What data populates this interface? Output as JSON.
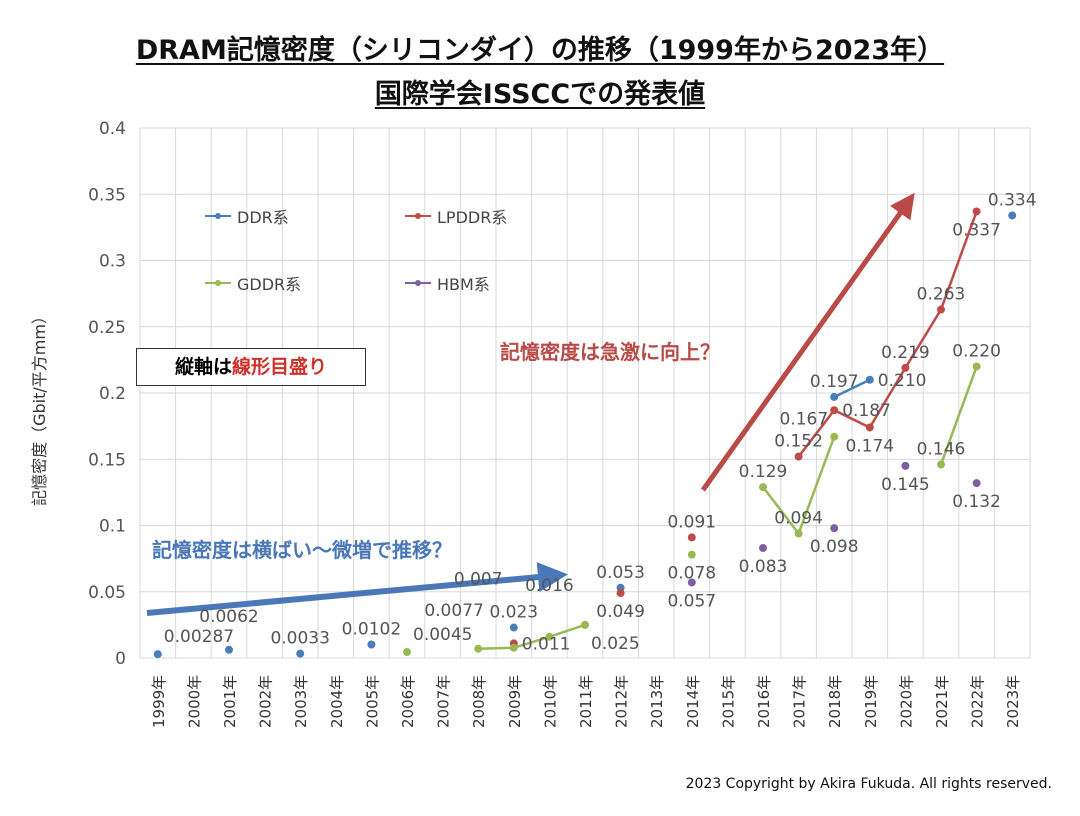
{
  "title_line1": "DRAM記憶密度（シリコンダイ）の推移（1999年から2023年）",
  "title_line2": "国際学会ISSCCでの発表値",
  "note": {
    "part1": "縦軸は",
    "part2": "線形目盛り"
  },
  "annotation_blue": "記憶密度は横ばい～微増で推移？",
  "annotation_red": "記憶密度は急激に向上？",
  "copyright": "2023 Copyright by Akira Fukuda. All rights reserved.",
  "chart_data": {
    "type": "line",
    "ylabel": "記憶密度（Gbit/平方mm）",
    "ylim": [
      0,
      0.4
    ],
    "yticks": [
      "0",
      "0.05",
      "0.1",
      "0.15",
      "0.2",
      "0.25",
      "0.3",
      "0.35",
      "0.4"
    ],
    "categories": [
      "1999年",
      "2000年",
      "2001年",
      "2002年",
      "2003年",
      "2004年",
      "2005年",
      "2006年",
      "2007年",
      "2008年",
      "2009年",
      "2010年",
      "2011年",
      "2012年",
      "2013年",
      "2014年",
      "2015年",
      "2016年",
      "2017年",
      "2018年",
      "2019年",
      "2020年",
      "2021年",
      "2022年",
      "2023年"
    ],
    "grid": true,
    "legend_placement": "top-left inside",
    "series": [
      {
        "name": "DDR系",
        "color": "#4a7ebb",
        "points": [
          [
            "1999年",
            0.00287,
            "0.00287"
          ],
          [
            "2001年",
            0.0062,
            "0.0062"
          ],
          [
            "2003年",
            0.0033,
            "0.0033"
          ],
          [
            "2005年",
            0.0102,
            "0.0102"
          ],
          [
            "2009年",
            0.023,
            "0.023"
          ],
          [
            "2012年",
            0.053,
            "0.053"
          ],
          [
            "2018年",
            0.197,
            "0.197"
          ],
          [
            "2019年",
            0.21,
            "0.210"
          ],
          [
            "2023年",
            0.334,
            "0.334"
          ]
        ],
        "lines": [
          [
            "2018年",
            "2019年"
          ]
        ]
      },
      {
        "name": "LPDDR系",
        "color": "#be4b48",
        "points": [
          [
            "2009年",
            0.011,
            "0.011"
          ],
          [
            "2012年",
            0.049,
            "0.049"
          ],
          [
            "2014年",
            0.091,
            "0.091"
          ],
          [
            "2017年",
            0.152,
            "0.152"
          ],
          [
            "2018年",
            0.187,
            "0.187"
          ],
          [
            "2019年",
            0.174,
            "0.174"
          ],
          [
            "2020年",
            0.219,
            "0.219"
          ],
          [
            "2021年",
            0.263,
            "0.263"
          ],
          [
            "2022年",
            0.337,
            "0.337"
          ]
        ],
        "lines": [
          [
            "2017年",
            "2022年"
          ]
        ]
      },
      {
        "name": "GDDR系",
        "color": "#98b954",
        "points": [
          [
            "2006年",
            0.0045,
            "0.0045"
          ],
          [
            "2008年",
            0.007,
            "0.007"
          ],
          [
            "2009年",
            0.0077,
            "0.0077"
          ],
          [
            "2010年",
            0.016,
            "0.016"
          ],
          [
            "2011年",
            0.025,
            "0.025"
          ],
          [
            "2014年",
            0.078,
            "0.078"
          ],
          [
            "2016年",
            0.129,
            "0.129"
          ],
          [
            "2017年",
            0.094,
            "0.094"
          ],
          [
            "2018年",
            0.167,
            "0.167"
          ],
          [
            "2021年",
            0.146,
            "0.146"
          ],
          [
            "2022年",
            0.22,
            "0.220"
          ]
        ],
        "lines": [
          [
            "2008年",
            "2011年"
          ],
          [
            "2016年",
            "2018年"
          ],
          [
            "2021年",
            "2022年"
          ]
        ]
      },
      {
        "name": "HBM系",
        "color": "#7d5fa0",
        "points": [
          [
            "2014年",
            0.057,
            "0.057"
          ],
          [
            "2016年",
            0.083,
            "0.083"
          ],
          [
            "2018年",
            0.098,
            "0.098"
          ],
          [
            "2020年",
            0.145,
            "0.145"
          ],
          [
            "2022年",
            0.132,
            "0.132"
          ]
        ],
        "lines": []
      }
    ]
  }
}
